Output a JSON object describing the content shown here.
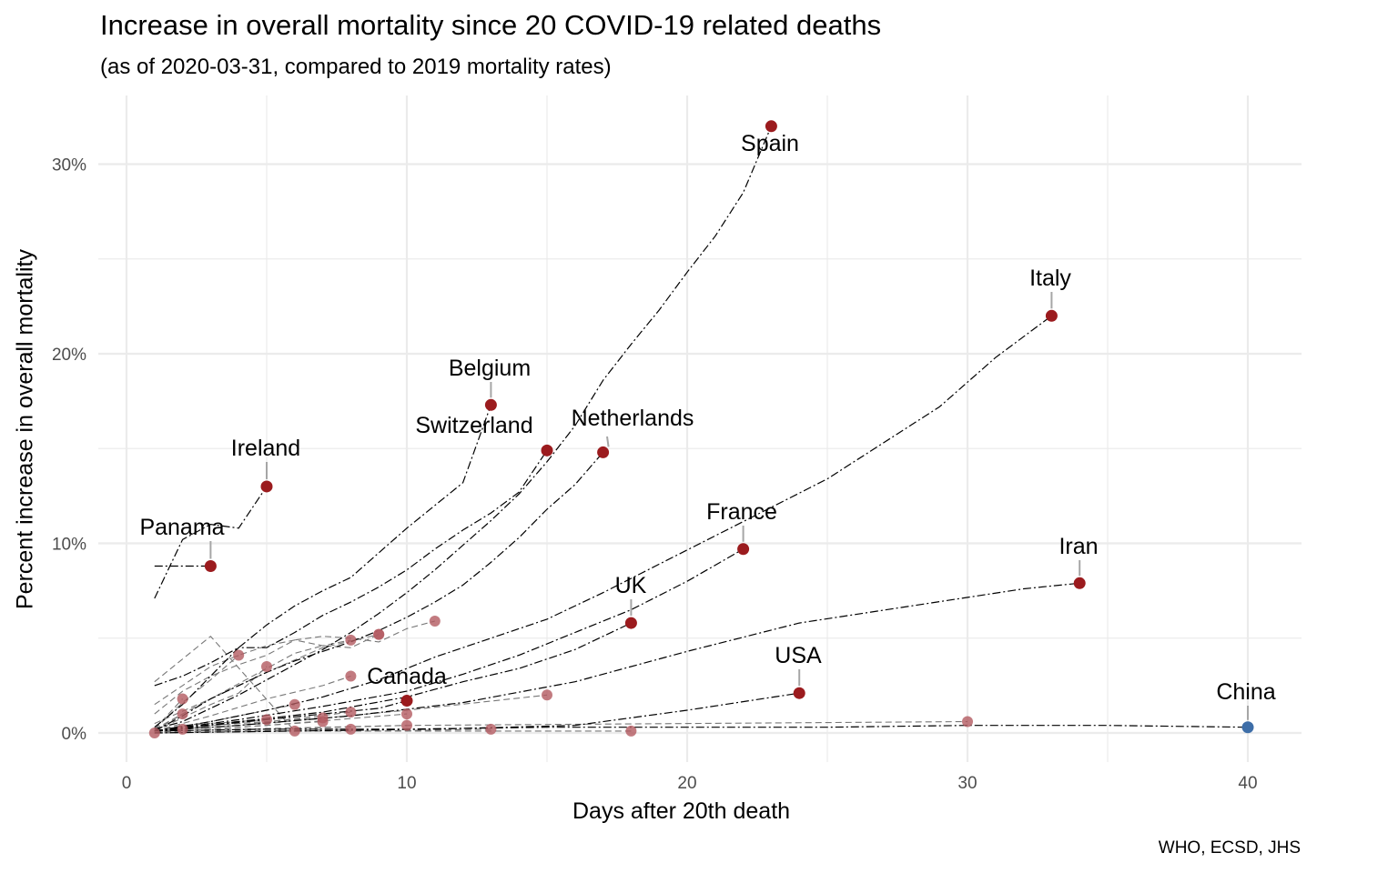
{
  "chart_data": {
    "type": "line",
    "title": "Increase in overall mortality since 20 COVID-19 related deaths",
    "subtitle": "(as of 2020-03-31, compared to 2019 mortality rates)",
    "xlabel": "Days after 20th death",
    "ylabel": "Percent increase in overall mortality",
    "caption": "WHO, ECSD, JHS",
    "xlim": [
      -1,
      42
    ],
    "ylim": [
      -1,
      33
    ],
    "x_ticks": [
      0,
      10,
      20,
      30,
      40
    ],
    "x_tick_labels": [
      "0",
      "10",
      "20",
      "30",
      "40"
    ],
    "y_ticks": [
      0,
      10,
      20,
      30
    ],
    "y_tick_labels": [
      "0%",
      "10%",
      "20%",
      "30%"
    ],
    "grid": true,
    "legend": "none",
    "colors": {
      "highlight": "#9b1b1e",
      "other": "#b35a60",
      "china": "#3e6ea8",
      "line": "#000000",
      "grid": "#ebebeb"
    },
    "labeled_series": [
      {
        "name": "Spain",
        "x": [
          1,
          2,
          3,
          4,
          5,
          6,
          7,
          8,
          9,
          10,
          11,
          12,
          13,
          14,
          15,
          16,
          17,
          18,
          19,
          20,
          21,
          22,
          23
        ],
        "values": [
          0.2,
          0.6,
          1.3,
          2,
          2.8,
          3.6,
          4.4,
          5.3,
          6.3,
          7.4,
          8.6,
          9.9,
          11.2,
          12.6,
          14.3,
          16.2,
          18.6,
          20.5,
          22.3,
          24.3,
          26.2,
          28.5,
          32
        ]
      },
      {
        "name": "Italy",
        "x": [
          1,
          3,
          5,
          7,
          9,
          11,
          13,
          15,
          17,
          19,
          21,
          23,
          25,
          27,
          29,
          31,
          33
        ],
        "values": [
          0.1,
          0.6,
          1.2,
          1.9,
          2.8,
          4,
          5,
          6,
          7.4,
          8.9,
          10.4,
          11.9,
          13.4,
          15.3,
          17.2,
          19.8,
          22
        ]
      },
      {
        "name": "Belgium",
        "x": [
          1,
          2,
          3,
          4,
          5,
          6,
          7,
          8,
          9,
          10,
          11,
          12,
          13
        ],
        "values": [
          2.5,
          3,
          3.7,
          4.5,
          5.7,
          6.7,
          7.5,
          8.2,
          9.5,
          10.8,
          12,
          13.2,
          17.3
        ]
      },
      {
        "name": "Switzerland",
        "x": [
          1,
          2,
          3,
          4,
          5,
          6,
          7,
          8,
          9,
          10,
          11,
          12,
          13,
          14,
          15
        ],
        "values": [
          0.3,
          1.5,
          3,
          4.5,
          4.5,
          5.3,
          6.2,
          6.9,
          7.7,
          8.6,
          9.7,
          10.7,
          11.6,
          12.7,
          14.9
        ]
      },
      {
        "name": "Netherlands",
        "x": [
          1,
          2,
          3,
          4,
          5,
          6,
          7,
          8,
          9,
          10,
          11,
          12,
          13,
          14,
          15,
          16,
          17
        ],
        "values": [
          0.1,
          0.9,
          1.8,
          2.5,
          3.2,
          3.8,
          4.3,
          4.8,
          5.4,
          6.1,
          6.9,
          7.8,
          9,
          10.3,
          11.8,
          13.1,
          14.8
        ]
      },
      {
        "name": "Ireland",
        "x": [
          1,
          2,
          3,
          4,
          5
        ],
        "values": [
          7.1,
          10.2,
          11,
          10.8,
          13
        ]
      },
      {
        "name": "Panama",
        "x": [
          1,
          2,
          3
        ],
        "values": [
          8.8,
          8.8,
          8.8
        ]
      },
      {
        "name": "France",
        "x": [
          1,
          4,
          7,
          10,
          12,
          14,
          16,
          18,
          20,
          22
        ],
        "values": [
          0.1,
          0.7,
          1.4,
          2.2,
          3.1,
          4.1,
          5.3,
          6.5,
          8.0,
          9.7
        ]
      },
      {
        "name": "UK",
        "x": [
          1,
          4,
          7,
          10,
          12,
          14,
          16,
          18
        ],
        "values": [
          0.1,
          0.6,
          1.1,
          1.9,
          2.7,
          3.4,
          4.4,
          5.8
        ]
      },
      {
        "name": "Iran",
        "x": [
          1,
          4,
          8,
          12,
          16,
          20,
          24,
          28,
          32,
          34
        ],
        "values": [
          0.1,
          0.4,
          0.9,
          1.6,
          2.7,
          4.3,
          5.8,
          6.7,
          7.6,
          7.9
        ]
      },
      {
        "name": "USA",
        "x": [
          1,
          6,
          11,
          16,
          20,
          24
        ],
        "values": [
          0,
          0.1,
          0.2,
          0.4,
          1.2,
          2.1
        ]
      },
      {
        "name": "Canada",
        "x": [
          1,
          3,
          5,
          7,
          9,
          10
        ],
        "values": [
          0.1,
          0.4,
          0.7,
          1,
          1.3,
          1.7
        ]
      },
      {
        "name": "China",
        "x": [
          1,
          5,
          10,
          15,
          20,
          25,
          30,
          35,
          40
        ],
        "values": [
          0.1,
          0.2,
          0.2,
          0.3,
          0.3,
          0.3,
          0.4,
          0.4,
          0.3
        ]
      }
    ],
    "other_series": [
      {
        "x": [
          1,
          3,
          6
        ],
        "values": [
          2.7,
          5.1,
          0.1
        ]
      },
      {
        "x": [
          1,
          2,
          3,
          4,
          5,
          6,
          7,
          8,
          9,
          10,
          11
        ],
        "values": [
          1,
          2.2,
          3,
          3.6,
          4.1,
          4.9,
          5.1,
          5,
          4.8,
          5.5,
          5.9
        ]
      },
      {
        "x": [
          1,
          3,
          5,
          7,
          9
        ],
        "values": [
          0.5,
          1.8,
          3.2,
          4.5,
          5.2
        ]
      },
      {
        "x": [
          1,
          2,
          3,
          4,
          5,
          6,
          7,
          8
        ],
        "values": [
          1.5,
          2.5,
          3.5,
          4.1,
          4.6,
          4.9,
          4.6,
          4.9
        ]
      },
      {
        "x": [
          1,
          2,
          3,
          4,
          5,
          6,
          7,
          8,
          9
        ],
        "values": [
          0.2,
          1,
          1.8,
          2.6,
          3.4,
          4.2,
          4.6,
          4.5,
          5.2
        ]
      },
      {
        "x": [
          1,
          2,
          3,
          4,
          5
        ],
        "values": [
          0.1,
          0.8,
          1.5,
          2.1,
          3.5
        ]
      },
      {
        "x": [
          1,
          2,
          3,
          4
        ],
        "values": [
          0.2,
          1.6,
          2.8,
          4.1
        ]
      },
      {
        "x": [
          1,
          3,
          5,
          7,
          8
        ],
        "values": [
          0.1,
          0.9,
          1.8,
          2.5,
          3
        ]
      },
      {
        "x": [
          1,
          2
        ],
        "values": [
          0.2,
          1.8
        ]
      },
      {
        "x": [
          1,
          5,
          10,
          15
        ],
        "values": [
          0.1,
          0.5,
          1.2,
          2
        ]
      },
      {
        "x": [
          1,
          10,
          20,
          30
        ],
        "values": [
          0.1,
          0.4,
          0.5,
          0.6
        ]
      },
      {
        "x": [
          1,
          2
        ],
        "values": [
          0.1,
          1
        ]
      },
      {
        "x": [
          1,
          6,
          11,
          18
        ],
        "values": [
          0,
          0.1,
          0.1,
          0.1
        ]
      },
      {
        "x": [
          1,
          4,
          8
        ],
        "values": [
          0.1,
          0.4,
          1.1
        ]
      },
      {
        "x": [
          1,
          3,
          7
        ],
        "values": [
          0,
          0.4,
          0.8
        ]
      },
      {
        "x": [
          1,
          2,
          5
        ],
        "values": [
          0.1,
          0.4,
          0.7
        ]
      },
      {
        "x": [
          1,
          5,
          9,
          13
        ],
        "values": [
          0,
          0.1,
          0.1,
          0.2
        ]
      },
      {
        "x": [
          1,
          3,
          6
        ],
        "values": [
          0.1,
          0.6,
          1.5
        ]
      },
      {
        "x": [
          1,
          5,
          10
        ],
        "values": [
          0,
          0.4,
          1
        ]
      },
      {
        "x": [
          1,
          2
        ],
        "values": [
          0,
          0.2
        ]
      },
      {
        "x": [
          1,
          4,
          8
        ],
        "values": [
          0,
          0.1,
          0.2
        ]
      },
      {
        "x": [
          1,
          5,
          10
        ],
        "values": [
          0,
          0.2,
          0.4
        ]
      },
      {
        "x": [
          1,
          4,
          7
        ],
        "values": [
          0,
          0.3,
          0.6
        ]
      },
      {
        "x": [
          1
        ],
        "values": [
          0
        ]
      }
    ]
  }
}
